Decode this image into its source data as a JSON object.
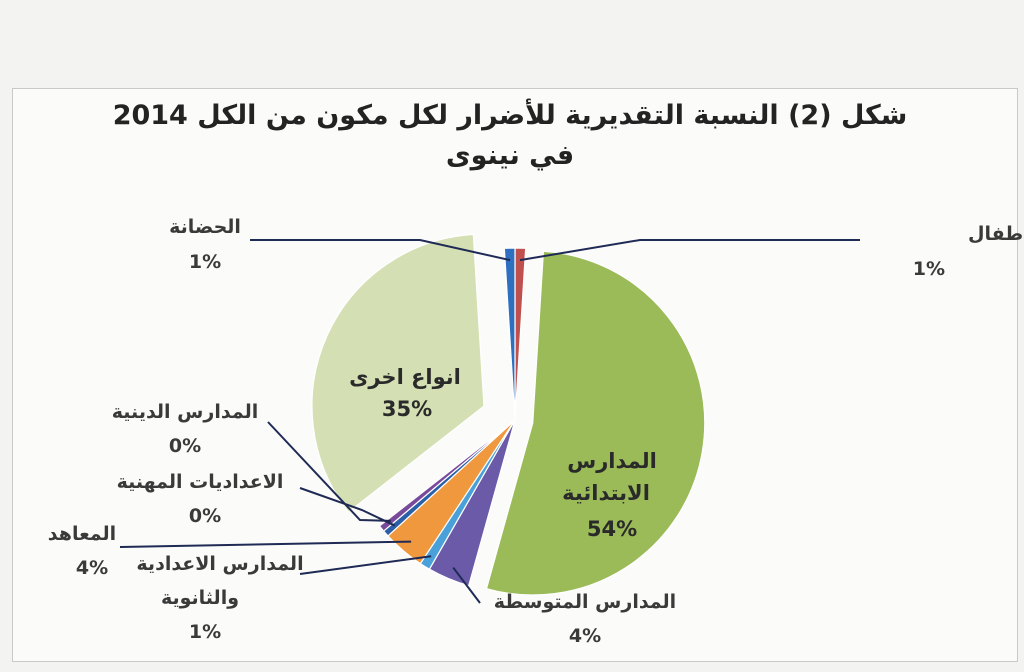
{
  "title": "شكل (2) النسبة التقديرية للأضرار لكل مكون من الكل 2014 في نينوى",
  "chart_data": {
    "type": "pie",
    "title": "شكل (2) النسبة التقديرية للأضرار لكل مكون من الكل 2014 في نينوى",
    "slices": [
      {
        "label": "رياض الاطفال",
        "value": 1,
        "value_label": "1%",
        "color": "#c0504d"
      },
      {
        "label": "المدارس الابتدائية",
        "value": 54,
        "value_label": "54%",
        "color": "#9bbb59"
      },
      {
        "label": "المدارس المتوسطة",
        "value": 4,
        "value_label": "4%",
        "color": "#6a5aa8"
      },
      {
        "label": "المدارس الاعدادية والثانوية",
        "value": 1,
        "value_label": "1%",
        "color": "#4aa0d8"
      },
      {
        "label": "المعاهد",
        "value": 4,
        "value_label": "4%",
        "color": "#f0983e"
      },
      {
        "label": "الاعداديات المهنية",
        "value": 0,
        "value_label": "0%",
        "color": "#2b5fa8"
      },
      {
        "label": "المدارس الدينية",
        "value": 0,
        "value_label": "0%",
        "color": "#7a4a9a"
      },
      {
        "label": "انواع اخرى",
        "value": 35,
        "value_label": "35%",
        "color": "#d4e0b4"
      },
      {
        "label": "الحضانة",
        "value": 1,
        "value_label": "1%",
        "color": "#2e6fc0"
      }
    ]
  }
}
